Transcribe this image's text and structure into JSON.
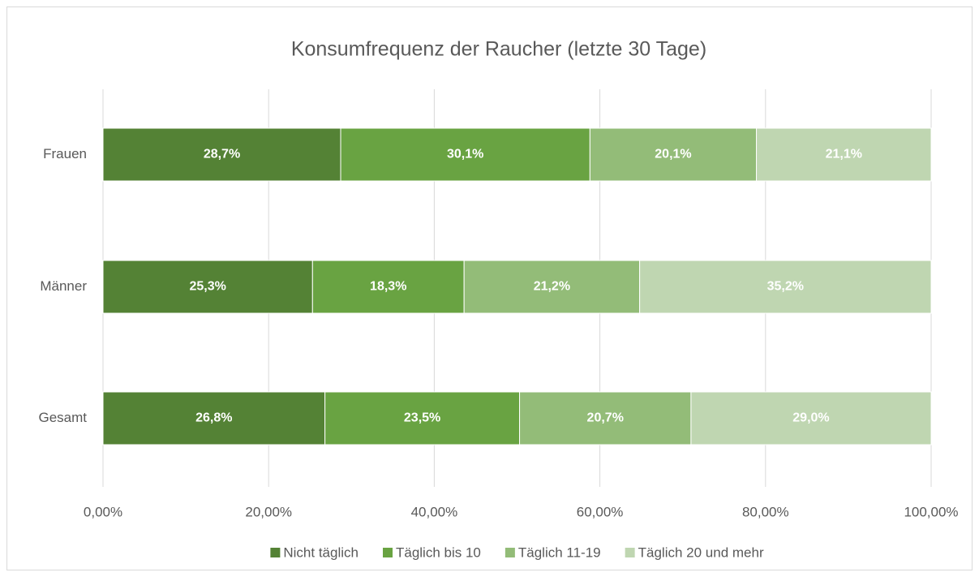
{
  "chart_data": {
    "type": "stacked-bar-horizontal",
    "title": "Konsumfrequenz der Raucher (letzte 30 Tage)",
    "categories": [
      "Frauen",
      "Männer",
      "Gesamt"
    ],
    "series": [
      {
        "name": "Nicht täglich",
        "color": "#548235",
        "values": [
          28.7,
          25.3,
          26.8
        ],
        "value_labels": [
          "28,7%",
          "25,3%",
          "26,8%"
        ]
      },
      {
        "name": "Täglich bis 10",
        "color": "#69a342",
        "values": [
          30.1,
          18.3,
          23.5
        ],
        "value_labels": [
          "30,1%",
          "18,3%",
          "23,5%"
        ]
      },
      {
        "name": "Täglich 11-19",
        "color": "#93bc78",
        "values": [
          20.1,
          21.2,
          20.7
        ],
        "value_labels": [
          "20,1%",
          "21,2%",
          "20,7%"
        ]
      },
      {
        "name": "Täglich 20 und mehr",
        "color": "#bfd6b1",
        "values": [
          21.1,
          35.2,
          29.0
        ],
        "value_labels": [
          "21,1%",
          "35,2%",
          "29,0%"
        ]
      }
    ],
    "xlim": [
      0,
      100
    ],
    "xticks": [
      {
        "value": 0,
        "label": "0,00%"
      },
      {
        "value": 20,
        "label": "20,00%"
      },
      {
        "value": 40,
        "label": "40,00%"
      },
      {
        "value": 60,
        "label": "60,00%"
      },
      {
        "value": 80,
        "label": "80,00%"
      },
      {
        "value": 100,
        "label": "100,00%"
      }
    ],
    "grid": true,
    "legend": "bottom"
  }
}
